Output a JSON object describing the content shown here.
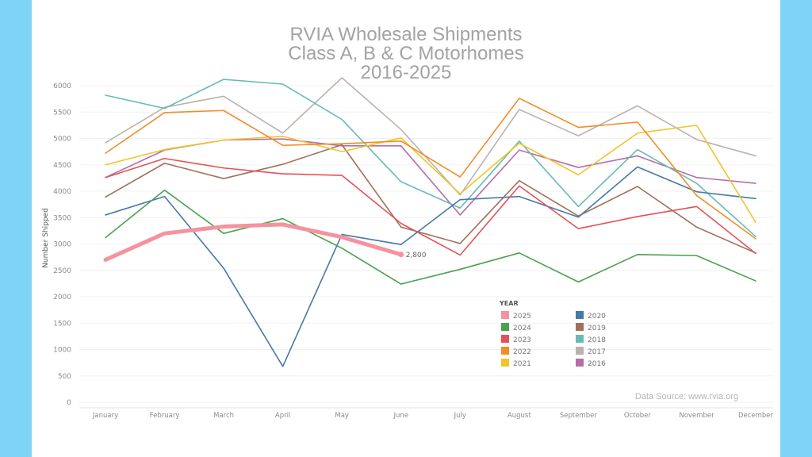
{
  "chart_data": {
    "type": "line",
    "title": [
      "RVIA Wholesale Shipments",
      "Class A, B & C Motorhomes",
      "2016-2025"
    ],
    "xlabel": "",
    "ylabel": "Number Shipped",
    "ylim": [
      0,
      6000
    ],
    "yticks": [
      0,
      500,
      1000,
      1500,
      2000,
      2500,
      3000,
      3500,
      4000,
      4500,
      5000,
      5500,
      6000
    ],
    "ytick_labels": [
      "0",
      "500",
      "1000",
      "1500",
      "2000",
      "2500",
      "3000",
      "3500",
      "4000",
      "4500",
      "5000",
      "5500",
      "6000"
    ],
    "grid": true,
    "categories": [
      "January",
      "February",
      "March",
      "April",
      "May",
      "June",
      "July",
      "August",
      "September",
      "October",
      "November",
      "December"
    ],
    "legend": {
      "title": "YEAR",
      "placement": "bottom-center"
    },
    "series": [
      {
        "name": "2025",
        "color": "#f4939f",
        "highlight": true,
        "values": [
          2700,
          3200,
          3330,
          3370,
          3130,
          2800,
          null,
          null,
          null,
          null,
          null,
          null
        ],
        "end_label": "2,800"
      },
      {
        "name": "2024",
        "color": "#4aa150",
        "values": [
          3120,
          4020,
          3200,
          3480,
          2920,
          2240,
          2520,
          2830,
          2280,
          2800,
          2780,
          2300
        ]
      },
      {
        "name": "2023",
        "color": "#e35259",
        "values": [
          4260,
          4620,
          4440,
          4330,
          4300,
          3390,
          2790,
          4100,
          3290,
          3520,
          3710,
          2820
        ]
      },
      {
        "name": "2022",
        "color": "#f28c28",
        "values": [
          4720,
          5490,
          5530,
          4870,
          4900,
          4950,
          4270,
          5760,
          5210,
          5310,
          3920,
          3100
        ]
      },
      {
        "name": "2021",
        "color": "#f0c52b",
        "values": [
          4500,
          4790,
          4970,
          5040,
          4750,
          5010,
          3950,
          4910,
          4310,
          5100,
          5250,
          3410
        ]
      },
      {
        "name": "2020",
        "color": "#4778aa",
        "values": [
          3550,
          3900,
          2540,
          680,
          3180,
          2990,
          3840,
          3900,
          3510,
          4460,
          3990,
          3860
        ]
      },
      {
        "name": "2019",
        "color": "#a0705b",
        "values": [
          3890,
          4530,
          4240,
          4510,
          4880,
          3320,
          3010,
          4200,
          3530,
          4090,
          3320,
          2830
        ]
      },
      {
        "name": "2018",
        "color": "#68bbb4",
        "values": [
          5820,
          5570,
          6120,
          6030,
          5360,
          4180,
          3680,
          4950,
          3710,
          4790,
          4150,
          3140
        ]
      },
      {
        "name": "2017",
        "color": "#bcb1ac",
        "values": [
          4920,
          5590,
          5800,
          5100,
          6150,
          5170,
          3930,
          5550,
          5050,
          5620,
          4980,
          4670
        ]
      },
      {
        "name": "2016",
        "color": "#b36ea8",
        "values": [
          4260,
          4780,
          4970,
          4990,
          4860,
          4860,
          3550,
          4780,
          4450,
          4670,
          4260,
          4150
        ]
      }
    ],
    "annotation": "Data Source: www.rvia.org"
  }
}
